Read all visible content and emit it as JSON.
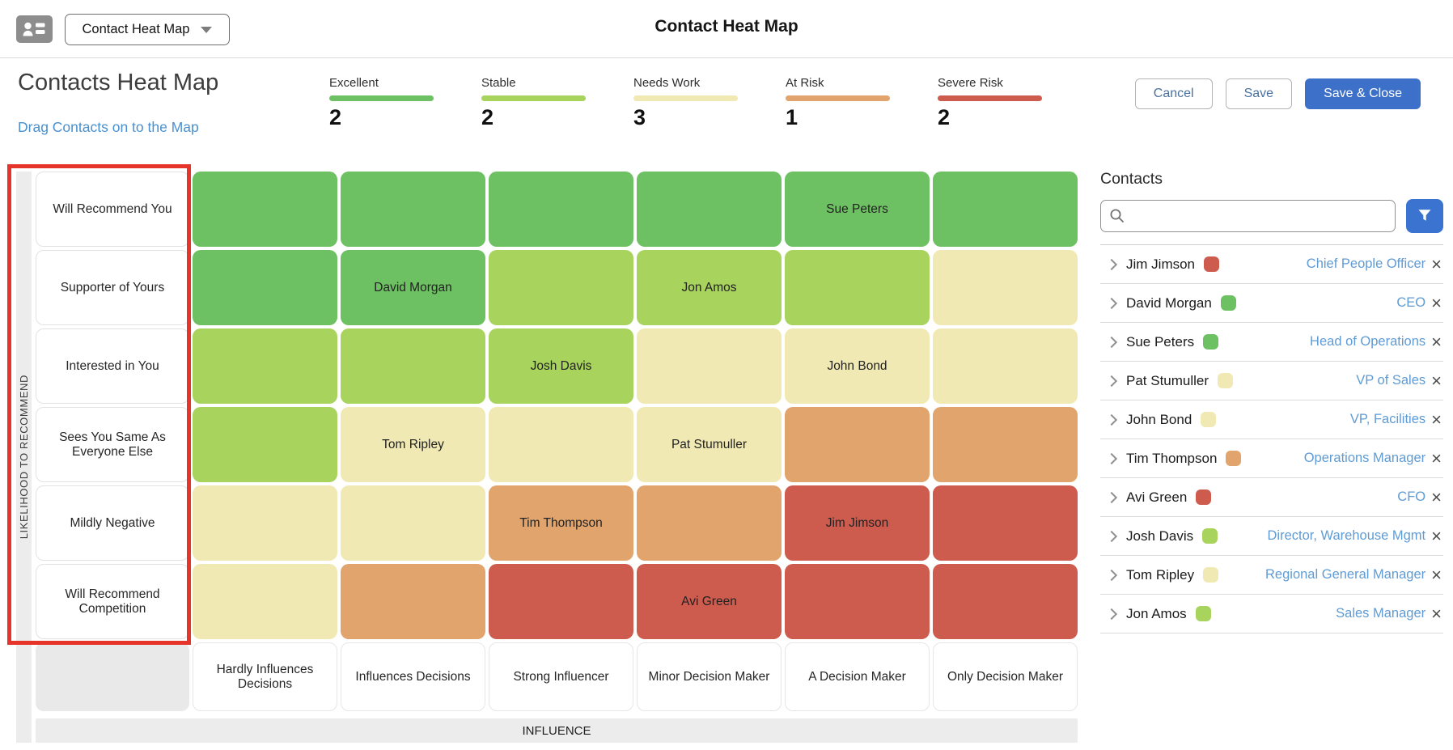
{
  "topbar": {
    "selector_label": "Contact Heat Map",
    "title": "Contact Heat Map"
  },
  "header": {
    "title": "Contacts Heat Map",
    "subtitle_link": "Drag Contacts on to the Map",
    "buttons": {
      "cancel": "Cancel",
      "save": "Save",
      "save_close": "Save & Close"
    }
  },
  "legend": {
    "items": [
      {
        "label": "Excellent",
        "count": "2",
        "color": "#6dc162"
      },
      {
        "label": "Stable",
        "count": "2",
        "color": "#a8d35c"
      },
      {
        "label": "Needs Work",
        "count": "3",
        "color": "#f1e9b3"
      },
      {
        "label": "At Risk",
        "count": "1",
        "color": "#e1a46c"
      },
      {
        "label": "Severe Risk",
        "count": "2",
        "color": "#cd5c4f"
      }
    ]
  },
  "heatmap": {
    "y_axis_label": "LIKELIHOOD TO RECOMMEND",
    "x_axis_label": "INFLUENCE",
    "row_labels": [
      "Will Recommend You",
      "Supporter of Yours",
      "Interested in You",
      "Sees You Same As Everyone Else",
      "Mildly Negative",
      "Will Recommend Competition"
    ],
    "col_labels": [
      "Hardly Influences Decisions",
      "Influences Decisions",
      "Strong Influencer",
      "Minor Decision Maker",
      "A Decision Maker",
      "Only Decision Maker"
    ],
    "palette": {
      "green": "#6dc162",
      "lightgreen": "#a8d35c",
      "yellow": "#f1e9b3",
      "orange": "#e1a46c",
      "red": "#cd5c4f"
    },
    "cells": [
      [
        {
          "color": "green"
        },
        {
          "color": "green"
        },
        {
          "color": "green"
        },
        {
          "color": "green"
        },
        {
          "color": "green",
          "name": "Sue Peters"
        },
        {
          "color": "green"
        }
      ],
      [
        {
          "color": "green"
        },
        {
          "color": "green",
          "name": "David Morgan"
        },
        {
          "color": "lightgreen"
        },
        {
          "color": "lightgreen",
          "name": "Jon Amos"
        },
        {
          "color": "lightgreen"
        },
        {
          "color": "yellow"
        }
      ],
      [
        {
          "color": "lightgreen"
        },
        {
          "color": "lightgreen"
        },
        {
          "color": "lightgreen",
          "name": "Josh Davis"
        },
        {
          "color": "yellow"
        },
        {
          "color": "yellow",
          "name": "John Bond"
        },
        {
          "color": "yellow"
        }
      ],
      [
        {
          "color": "lightgreen"
        },
        {
          "color": "yellow",
          "name": "Tom Ripley"
        },
        {
          "color": "yellow"
        },
        {
          "color": "yellow",
          "name": "Pat Stumuller"
        },
        {
          "color": "orange"
        },
        {
          "color": "orange"
        }
      ],
      [
        {
          "color": "yellow"
        },
        {
          "color": "yellow"
        },
        {
          "color": "orange",
          "name": "Tim Thompson"
        },
        {
          "color": "orange"
        },
        {
          "color": "red",
          "name": "Jim Jimson"
        },
        {
          "color": "red"
        }
      ],
      [
        {
          "color": "yellow"
        },
        {
          "color": "orange"
        },
        {
          "color": "red"
        },
        {
          "color": "red",
          "name": "Avi Green"
        },
        {
          "color": "red"
        },
        {
          "color": "red"
        }
      ]
    ]
  },
  "contacts_panel": {
    "title": "Contacts",
    "search_placeholder": "",
    "items": [
      {
        "name": "Jim Jimson",
        "status_color": "red",
        "role": "Chief People Officer"
      },
      {
        "name": "David Morgan",
        "status_color": "green",
        "role": "CEO"
      },
      {
        "name": "Sue Peters",
        "status_color": "green",
        "role": "Head of Operations"
      },
      {
        "name": "Pat Stumuller",
        "status_color": "yellow",
        "role": "VP of Sales"
      },
      {
        "name": "John Bond",
        "status_color": "yellow",
        "role": "VP, Facilities"
      },
      {
        "name": "Tim Thompson",
        "status_color": "orange",
        "role": "Operations Manager"
      },
      {
        "name": "Avi Green",
        "status_color": "red",
        "role": "CFO"
      },
      {
        "name": "Josh Davis",
        "status_color": "lightgreen",
        "role": "Director, Warehouse Mgmt"
      },
      {
        "name": "Tom Ripley",
        "status_color": "yellow",
        "role": "Regional General Manager"
      },
      {
        "name": "Jon Amos",
        "status_color": "lightgreen",
        "role": "Sales Manager"
      }
    ]
  },
  "colors": {
    "accent_blue": "#3d70c9",
    "filter_blue": "#3b73d1",
    "link_blue": "#4a90cf",
    "role_blue": "#5f9bd4",
    "annotation_red": "#e5352b"
  }
}
